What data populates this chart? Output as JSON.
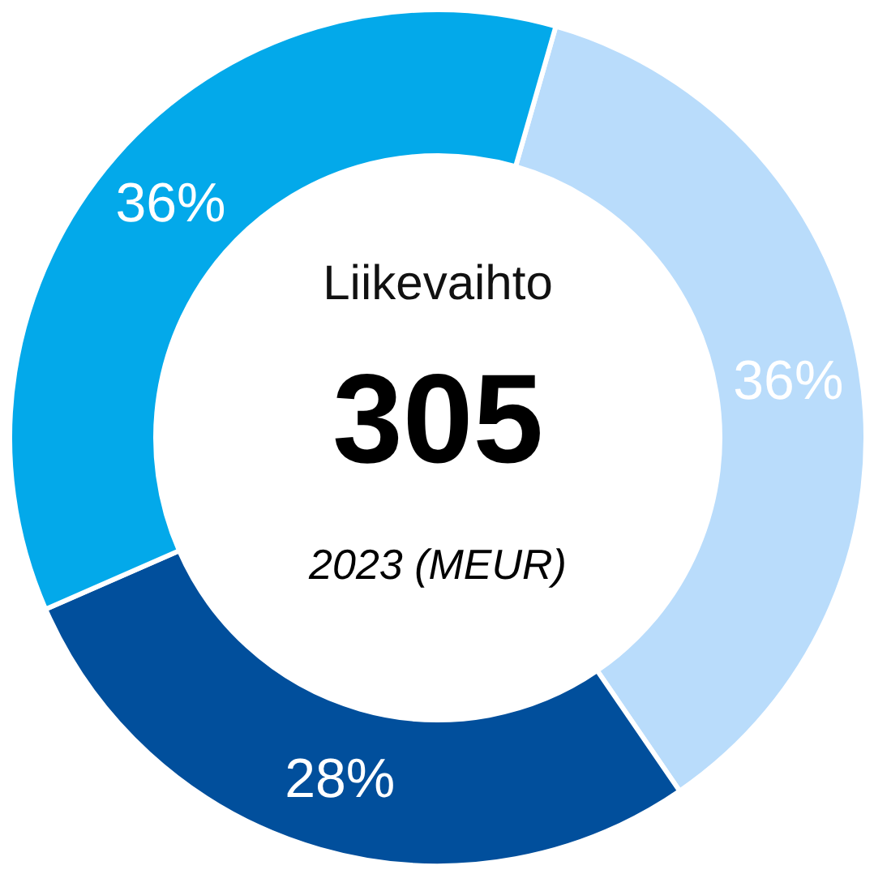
{
  "chart_data": {
    "type": "donut",
    "title": "Liikevaihto",
    "annotations": [
      "305",
      "2023 (MEUR)"
    ],
    "categories": [
      null,
      null,
      null
    ],
    "values": [
      36,
      28,
      36
    ],
    "colors": [
      "#b9dcfb",
      "#014f9c",
      "#03a9ea"
    ],
    "value_labels": [
      "36%",
      "28%",
      "36%"
    ]
  }
}
